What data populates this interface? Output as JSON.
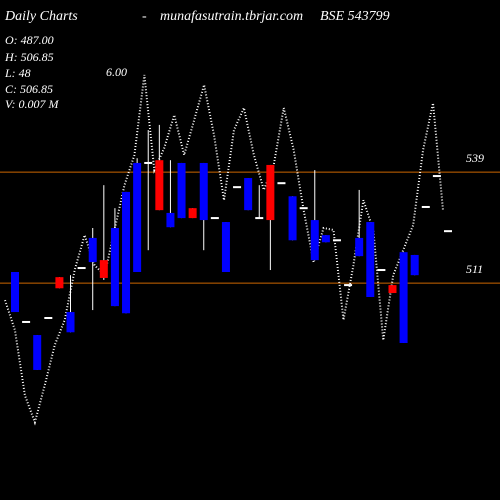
{
  "chart_data": {
    "type": "candlestick",
    "title": "Daily Charts",
    "separator": "-",
    "site": "munafasutrain.tbrjar.com",
    "symbol": "BSE 543799",
    "annotations": [
      "O: 487.00",
      "H: 506.85",
      "L: 48",
      "C: 506.85",
      "V: 0.007 M",
      "6.00"
    ],
    "open": [
      503.7,
      501.2,
      489.1,
      502.2,
      512.5,
      498.6,
      514.8,
      516.3,
      516.8,
      505.2,
      503.4,
      513.8,
      541.3,
      542.0,
      525.1,
      527.4,
      529.9,
      526.9,
      527.4,
      513.8,
      535.2,
      529.4,
      527.4,
      540.8,
      536.2,
      521.8,
      529.9,
      516.8,
      521.3,
      521.8,
      510.5,
      517.8,
      507.5,
      514.3,
      510.5,
      495.9,
      513.0,
      530.2,
      538.0,
      524.1
    ],
    "high": [
      513.8,
      501.2,
      497.9,
      502.2,
      512.5,
      513.0,
      514.8,
      524.9,
      535.7,
      529.9,
      534.0,
      542.5,
      549.6,
      550.9,
      542.0,
      541.3,
      529.9,
      541.3,
      527.4,
      526.4,
      535.2,
      537.5,
      535.7,
      540.8,
      536.2,
      532.9,
      529.9,
      539.5,
      523.1,
      521.8,
      510.5,
      534.5,
      526.4,
      514.3,
      510.5,
      518.8,
      518.1,
      530.2,
      538.0,
      524.1
    ],
    "low": [
      503.7,
      501.2,
      489.1,
      502.2,
      509.7,
      498.6,
      514.8,
      504.2,
      511.8,
      505.2,
      503.4,
      513.8,
      519.3,
      529.4,
      525.1,
      527.4,
      527.4,
      519.3,
      527.4,
      513.8,
      535.2,
      529.4,
      527.4,
      514.3,
      536.2,
      521.8,
      529.9,
      516.8,
      521.3,
      521.8,
      510.5,
      517.8,
      507.5,
      514.3,
      508.5,
      495.9,
      513.0,
      530.2,
      538.0,
      524.1
    ],
    "close": [
      513.8,
      501.2,
      497.9,
      502.2,
      509.7,
      503.7,
      514.8,
      522.4,
      512.3,
      524.9,
      534.0,
      541.3,
      541.3,
      529.4,
      528.7,
      541.3,
      527.4,
      541.3,
      527.4,
      526.4,
      535.2,
      537.5,
      527.4,
      526.9,
      536.2,
      532.9,
      529.9,
      526.9,
      523.1,
      521.8,
      510.5,
      522.4,
      526.4,
      514.3,
      508.5,
      518.8,
      518.1,
      530.2,
      538.0,
      524.1
    ],
    "up_color": "#0000ff",
    "down_color": "#ff0000",
    "flat_color": "#ffffff",
    "line": {
      "color": "#ffffff",
      "values": [
        506.7,
        499.1,
        482.7,
        475.9,
        485.3,
        495.4,
        501.7,
        514.3,
        523.1,
        515.5,
        513.0,
        524.4,
        535.7,
        543.3,
        563.5,
        539.5,
        545.1,
        553.4,
        543.3,
        552.1,
        561.0,
        548.3,
        531.9,
        549.6,
        555.2,
        543.3,
        534.5,
        540.8,
        555.2,
        544.6,
        529.4,
        516.3,
        524.9,
        524.4,
        501.7,
        515.5,
        531.9,
        524.4,
        496.6,
        513.0,
        519.3,
        525.6,
        544.6,
        556.4,
        529.4
      ]
    },
    "ylim": [
      456.3,
      582.4
    ],
    "yticks": [
      539,
      511
    ],
    "grid": true,
    "grid_color": "#cc6600"
  }
}
